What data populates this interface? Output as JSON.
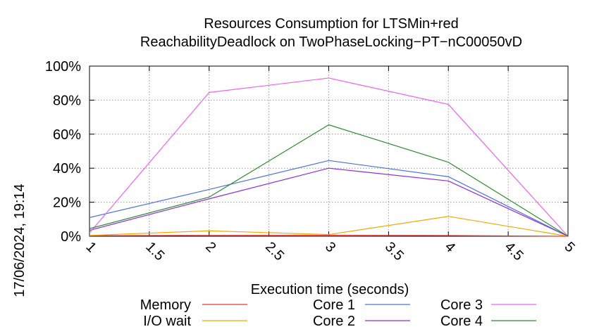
{
  "chart_data": {
    "type": "line",
    "title": "Resources Consumption for LTSMin+red",
    "subtitle": "ReachabilityDeadlock on TwoPhaseLocking−PT−nC00050vD",
    "xlabel": "Execution time (seconds)",
    "ylabel": "",
    "xlim": [
      1,
      5
    ],
    "ylim": [
      0,
      100
    ],
    "x_ticks": [
      "1",
      "1.5",
      "2",
      "2.5",
      "3",
      "3.5",
      "4",
      "4.5",
      "5"
    ],
    "x_tick_values": [
      1,
      1.5,
      2,
      2.5,
      3,
      3.5,
      4,
      4.5,
      5
    ],
    "y_ticks": [
      "0%",
      "20%",
      "40%",
      "60%",
      "80%",
      "100%"
    ],
    "y_tick_values": [
      0,
      20,
      40,
      60,
      80,
      100
    ],
    "grid": true,
    "legend_position": "bottom",
    "timestamp": "17/06/2024, 19:14",
    "x": [
      1,
      2,
      3,
      4,
      5
    ],
    "series": [
      {
        "name": "Memory",
        "color": "#e8372f",
        "values": [
          0.3,
          0.5,
          0.6,
          0.4,
          0
        ]
      },
      {
        "name": "I/O wait",
        "color": "#f5a700",
        "values": [
          0.5,
          3.2,
          1.0,
          11.7,
          0
        ]
      },
      {
        "name": "Core 1",
        "color": "#4a74d9",
        "values": [
          11,
          27.5,
          44.5,
          35,
          0
        ]
      },
      {
        "name": "Core 2",
        "color": "#8f2fe0",
        "values": [
          3.5,
          22,
          40,
          32.5,
          0
        ]
      },
      {
        "name": "Core 3",
        "color": "#f060f0",
        "values": [
          2,
          84.5,
          93,
          77.5,
          0
        ]
      },
      {
        "name": "Core 4",
        "color": "#2e8a2e",
        "values": [
          4.5,
          23,
          65.5,
          43.5,
          0
        ]
      }
    ]
  }
}
